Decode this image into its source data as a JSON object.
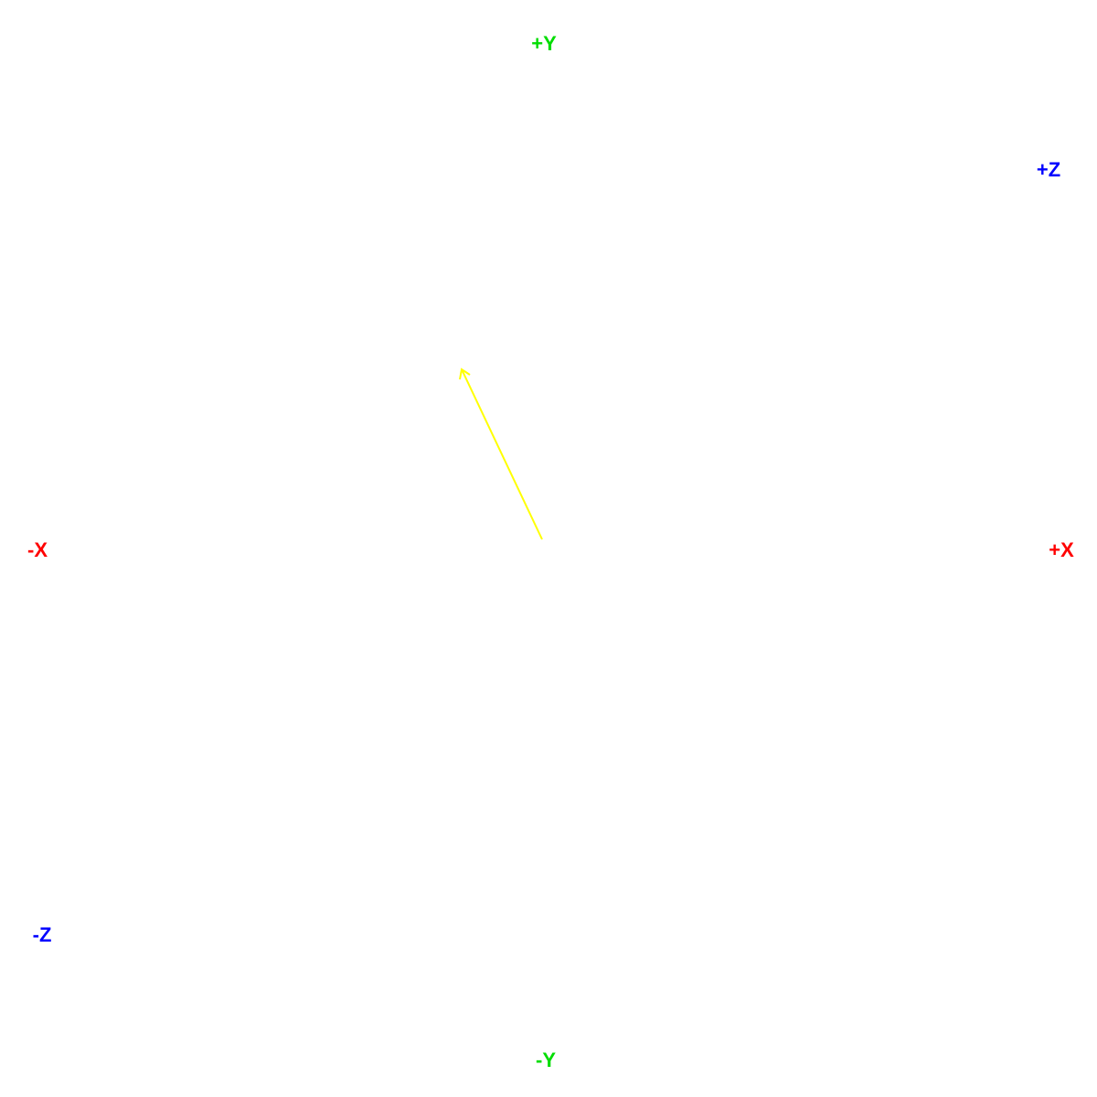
{
  "axes": {
    "pos_x": {
      "label": "+X",
      "color": "#ff0000"
    },
    "neg_x": {
      "label": "-X",
      "color": "#ff0000"
    },
    "pos_y": {
      "label": "+Y",
      "color": "#00dd00"
    },
    "neg_y": {
      "label": "-Y",
      "color": "#00dd00"
    },
    "pos_z": {
      "label": "+Z",
      "color": "#0000ff"
    },
    "neg_z": {
      "label": "-Z",
      "color": "#0000ff"
    }
  },
  "vector": {
    "color": "#ffff00"
  }
}
